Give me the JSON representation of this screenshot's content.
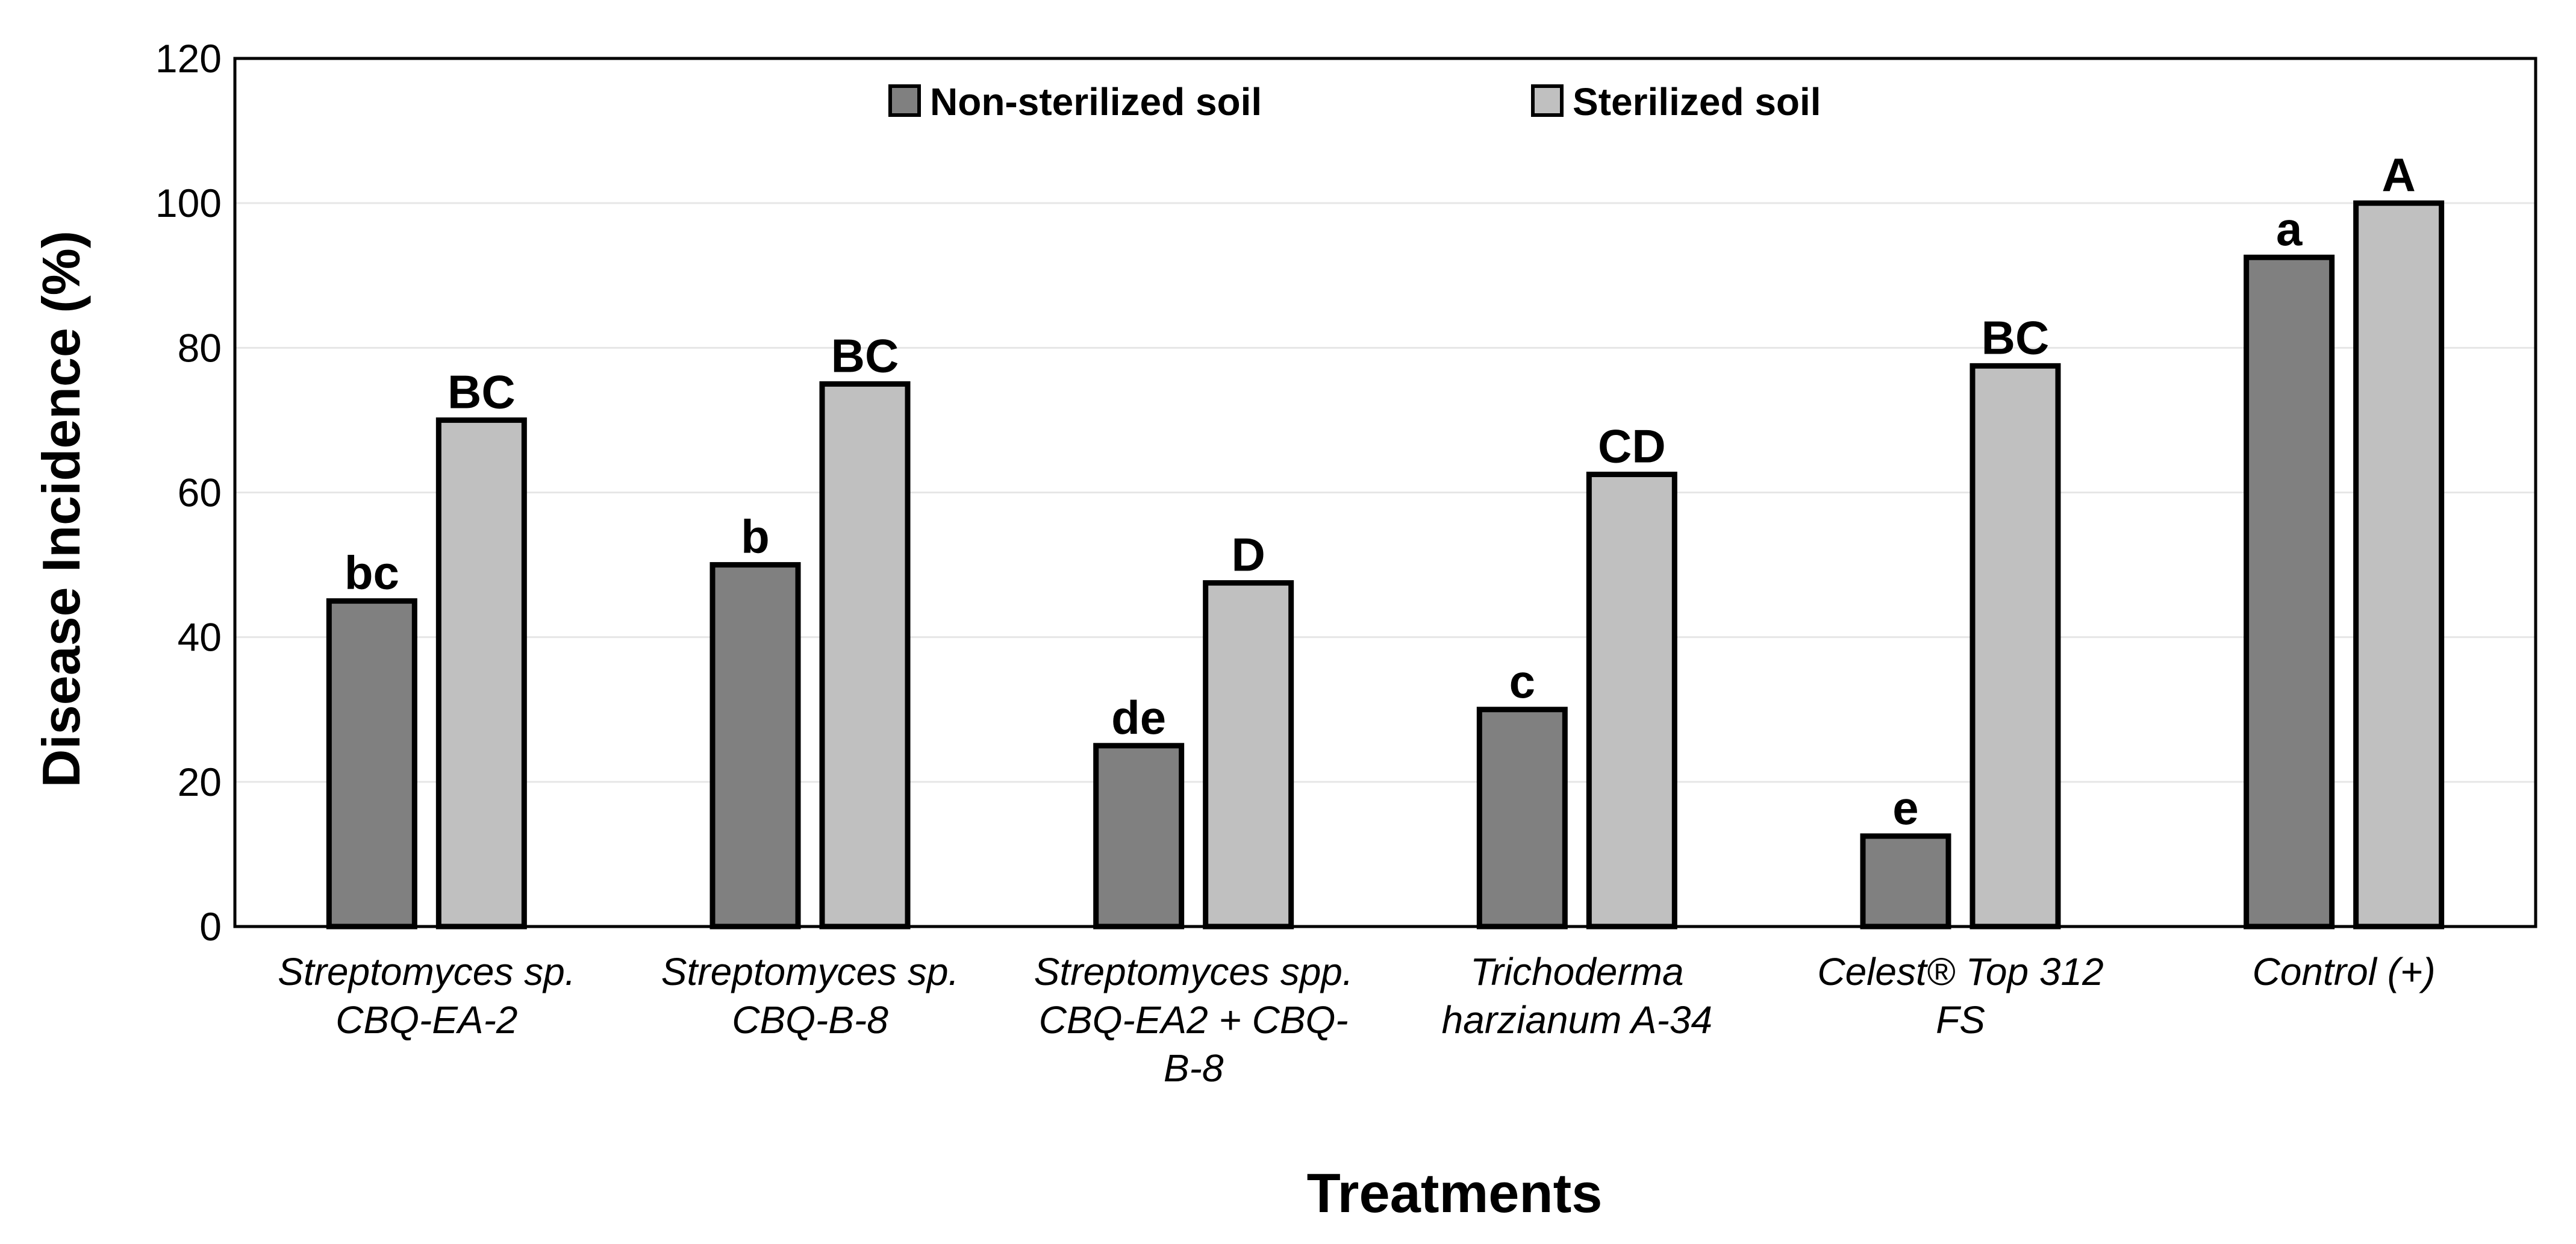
{
  "chart_data": {
    "type": "bar",
    "title": "",
    "xlabel": "Treatments",
    "ylabel": "Disease Incidence (%)",
    "ylim": [
      0,
      120
    ],
    "yticks": [
      0,
      20,
      40,
      60,
      80,
      100,
      120
    ],
    "grid": true,
    "legend_position": "top-center",
    "categories": [
      [
        "Streptomyces sp.",
        "CBQ-EA-2"
      ],
      [
        "Streptomyces sp.",
        "CBQ-B-8"
      ],
      [
        "Streptomyces spp.",
        "CBQ-EA2 + CBQ-",
        "B-8"
      ],
      [
        "Trichoderma",
        "harzianum A-34"
      ],
      [
        "Celest® Top 312",
        "FS"
      ],
      [
        "Control (+)"
      ]
    ],
    "series": [
      {
        "name": "Non-sterilized soil",
        "color": "#808080",
        "values": [
          45,
          50,
          25,
          30,
          12.5,
          92.5
        ],
        "labels": [
          "bc",
          "b",
          "de",
          "c",
          "e",
          "a"
        ]
      },
      {
        "name": "Sterilized soil",
        "color": "#c0c0c0",
        "values": [
          70,
          75,
          47.5,
          62.5,
          77.5,
          100
        ],
        "labels": [
          "BC",
          "BC",
          "D",
          "CD",
          "BC",
          "A"
        ]
      }
    ]
  }
}
